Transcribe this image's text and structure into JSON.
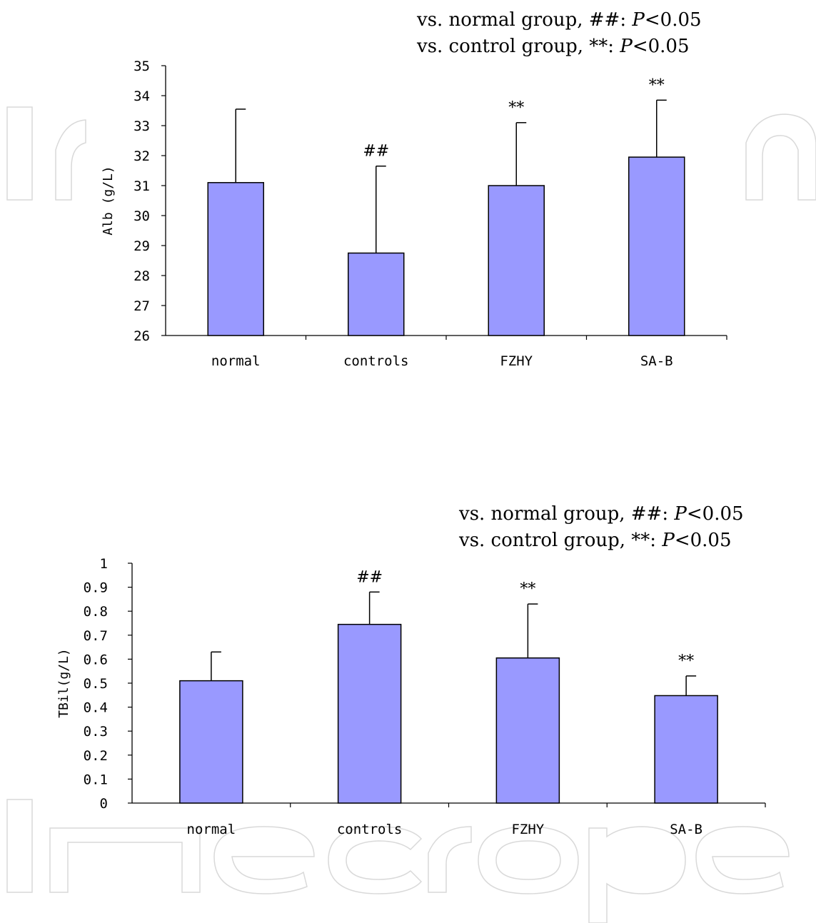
{
  "chart_data": [
    {
      "type": "bar",
      "legend_lines": [
        {
          "prefix": "vs. normal group, ##: ",
          "p_symbol": "P",
          "suffix": "<0.05"
        },
        {
          "prefix": "vs. control group, **: ",
          "p_symbol": "P",
          "suffix": "<0.05"
        }
      ],
      "ylabel": "Alb (g/L)",
      "ylim": [
        26,
        35
      ],
      "yticks": [
        26,
        27,
        28,
        29,
        30,
        31,
        32,
        33,
        34,
        35
      ],
      "categories": [
        "normal",
        "controls",
        "FZHY",
        "SA-B"
      ],
      "values": [
        31.1,
        28.75,
        31.0,
        31.95
      ],
      "error_upper": [
        2.45,
        2.9,
        2.1,
        1.9
      ],
      "significance": [
        "",
        "##",
        "**",
        "**"
      ],
      "bar_color": "#9999ff"
    },
    {
      "type": "bar",
      "legend_lines": [
        {
          "prefix": "vs. normal group, ##: ",
          "p_symbol": "P",
          "suffix": "<0.05"
        },
        {
          "prefix": "vs. control group, **: ",
          "p_symbol": "P",
          "suffix": "<0.05"
        }
      ],
      "ylabel": "TBil(g/L)",
      "ylim": [
        0,
        1
      ],
      "yticks": [
        "0",
        "0.1",
        "0.2",
        "0.3",
        "0.4",
        "0.5",
        "0.6",
        "0.7",
        "0.8",
        "0.9",
        "1"
      ],
      "categories": [
        "normal",
        "controls",
        "FZHY",
        "SA-B"
      ],
      "values": [
        0.51,
        0.745,
        0.605,
        0.448
      ],
      "error_upper": [
        0.12,
        0.135,
        0.225,
        0.082
      ],
      "significance": [
        "",
        "##",
        "**",
        "**"
      ],
      "bar_color": "#9999ff"
    }
  ]
}
